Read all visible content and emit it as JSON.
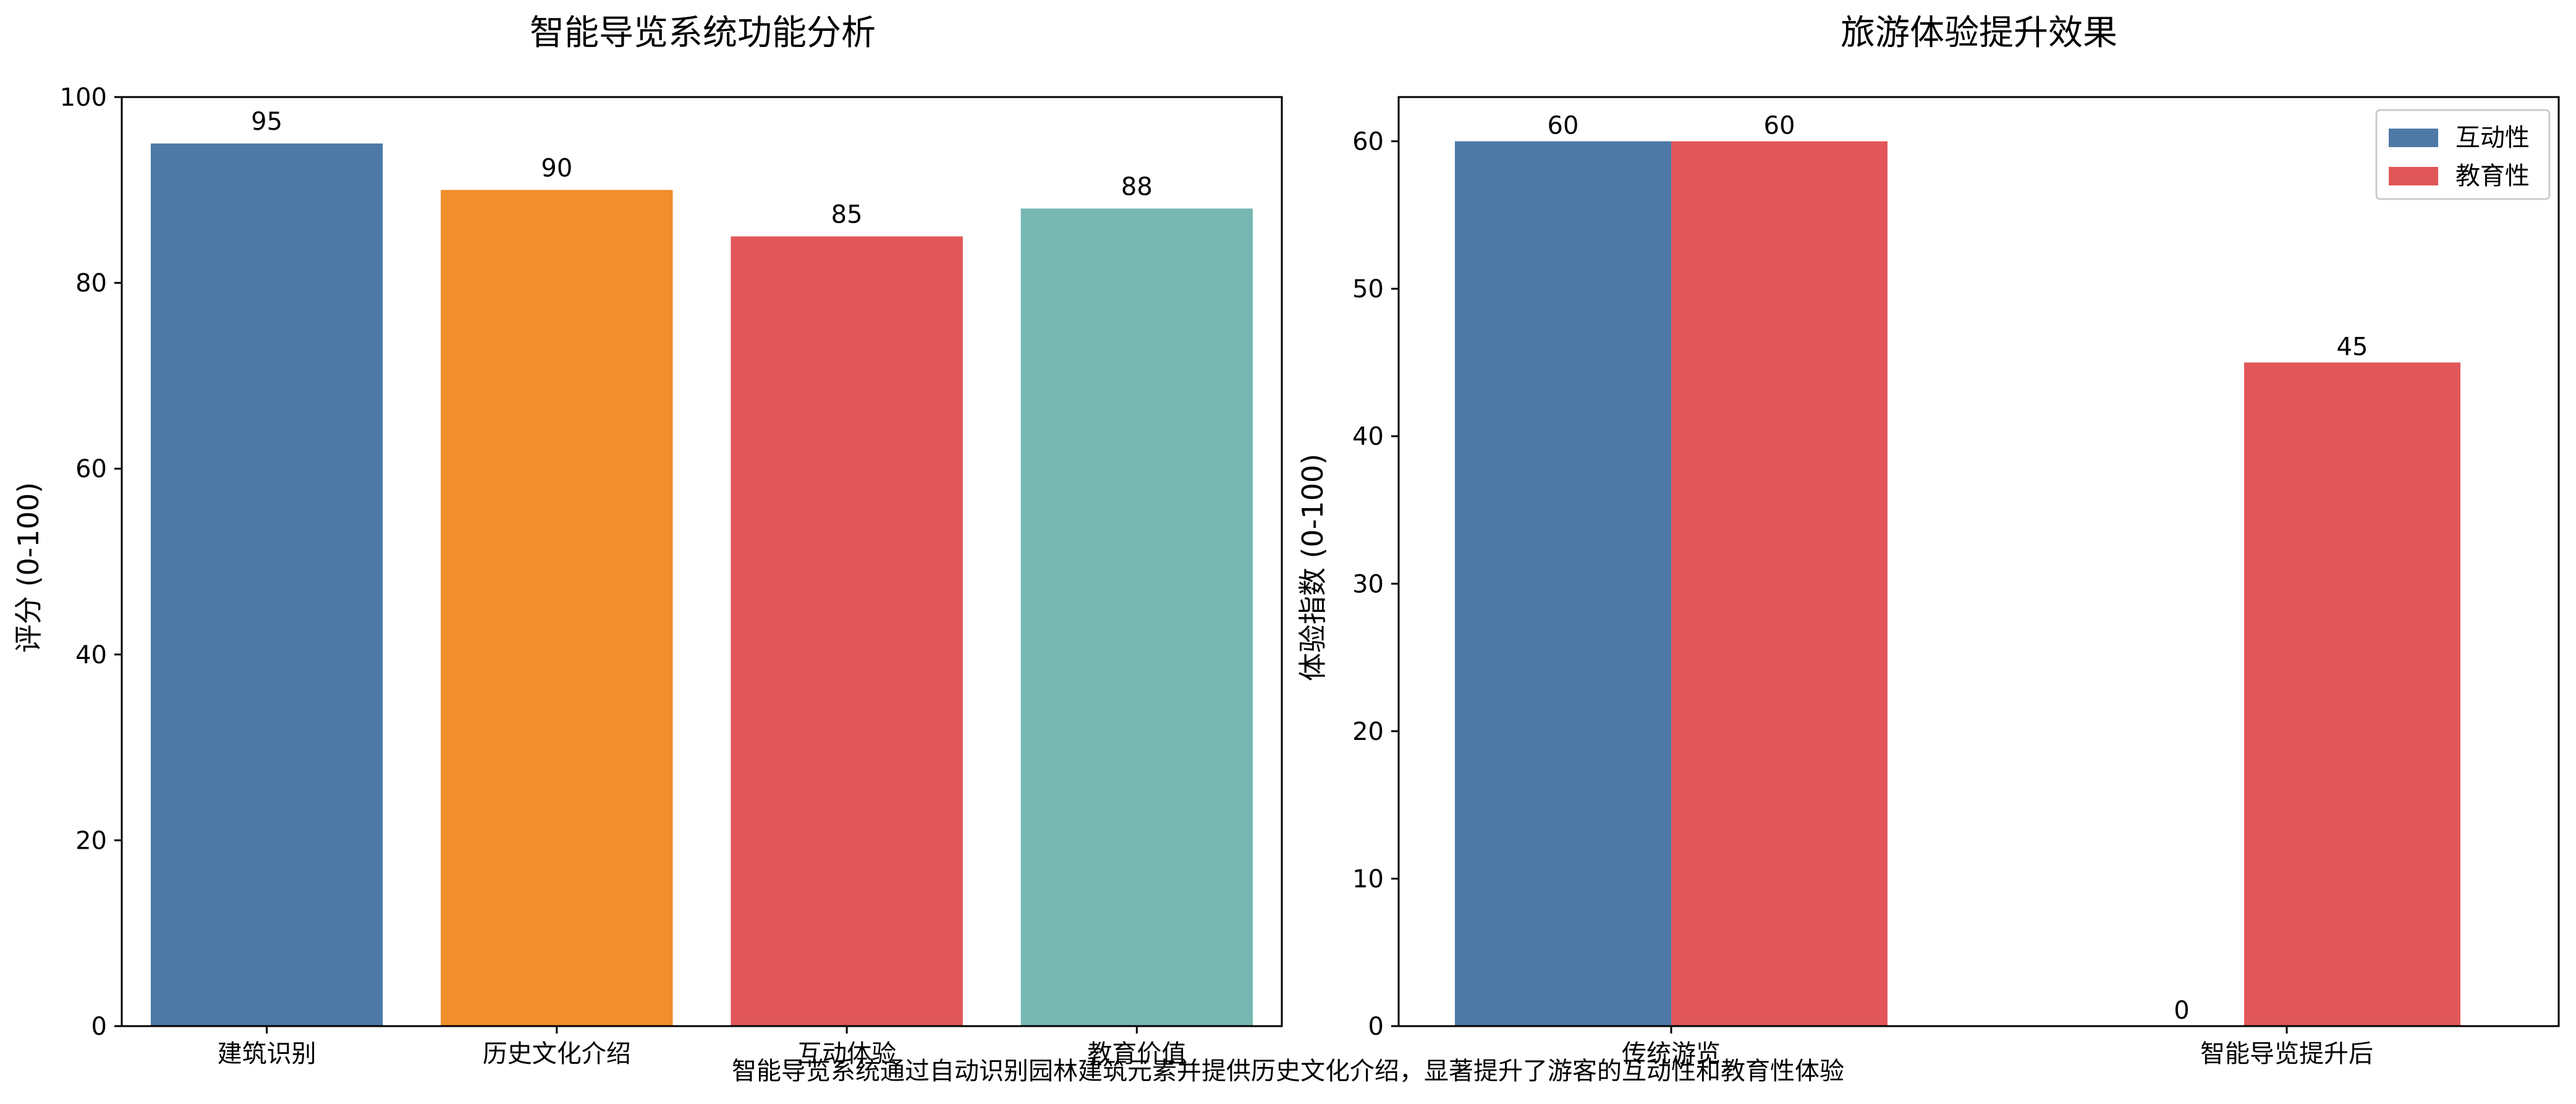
{
  "footnote": "智能导览系统通过自动识别园林建筑元素并提供历史文化介绍，显著提升了游客的互动性和教育性体验",
  "chart_data": [
    {
      "type": "bar",
      "title": "智能导览系统功能分析",
      "xlabel": "",
      "ylabel": "评分 (0-100)",
      "ylim": [
        0,
        100
      ],
      "yticks": [
        0,
        20,
        40,
        60,
        80,
        100
      ],
      "categories": [
        "建筑识别",
        "历史文化介绍",
        "互动体验",
        "教育价值"
      ],
      "values": [
        95,
        90,
        85,
        88
      ],
      "colors": [
        "#4e79a7",
        "#f28e2b",
        "#e15759",
        "#76b7b2"
      ],
      "data_labels": [
        "95",
        "90",
        "85",
        "88"
      ],
      "grid": false,
      "legend": null
    },
    {
      "type": "bar",
      "title": "旅游体验提升效果",
      "xlabel": "",
      "ylabel": "体验指数 (0-100)",
      "ylim": [
        0,
        63
      ],
      "yticks": [
        0,
        10,
        20,
        30,
        40,
        50,
        60
      ],
      "categories": [
        "传统游览",
        "智能导览提升后"
      ],
      "series": [
        {
          "name": "互动性",
          "values": [
            60,
            0
          ],
          "color": "#4e79a7",
          "labels": [
            "60",
            "0"
          ]
        },
        {
          "name": "教育性",
          "values": [
            60,
            45
          ],
          "color": "#e15759",
          "labels": [
            "60",
            "45"
          ]
        }
      ],
      "grid": false,
      "legend": "top-right"
    }
  ]
}
